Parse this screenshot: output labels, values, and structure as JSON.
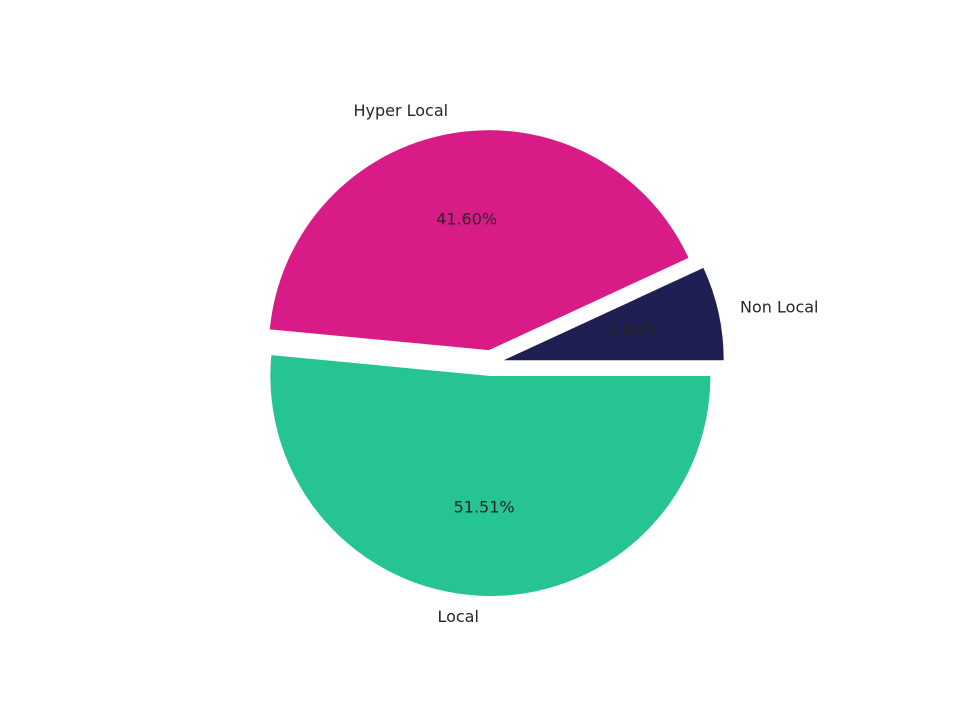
{
  "chart_data": {
    "type": "pie",
    "categories": [
      "Non Local",
      "Hyper Local",
      "Local"
    ],
    "values": [
      6.89,
      41.6,
      51.51
    ],
    "value_labels": [
      "6.89%",
      "41.60%",
      "51.51%"
    ],
    "colors": [
      "#1f1f54",
      "#d81b87",
      "#25c492"
    ]
  }
}
